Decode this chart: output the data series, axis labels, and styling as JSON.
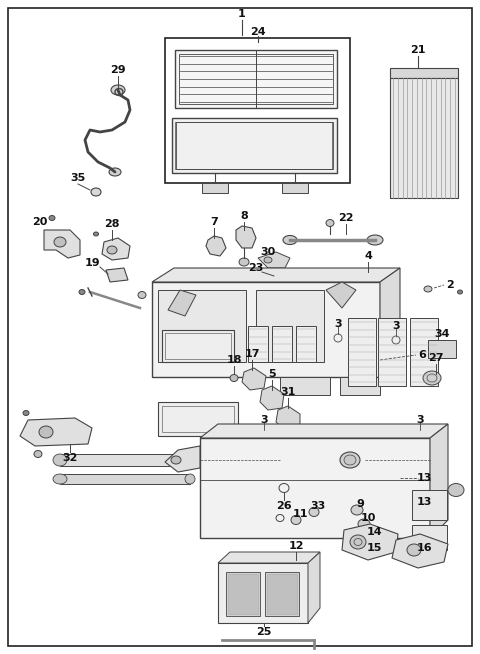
{
  "bg_color": "#ffffff",
  "border_color": "#333333",
  "line_color": "#444444",
  "text_color": "#111111",
  "fig_width": 4.8,
  "fig_height": 6.54,
  "dpi": 100
}
